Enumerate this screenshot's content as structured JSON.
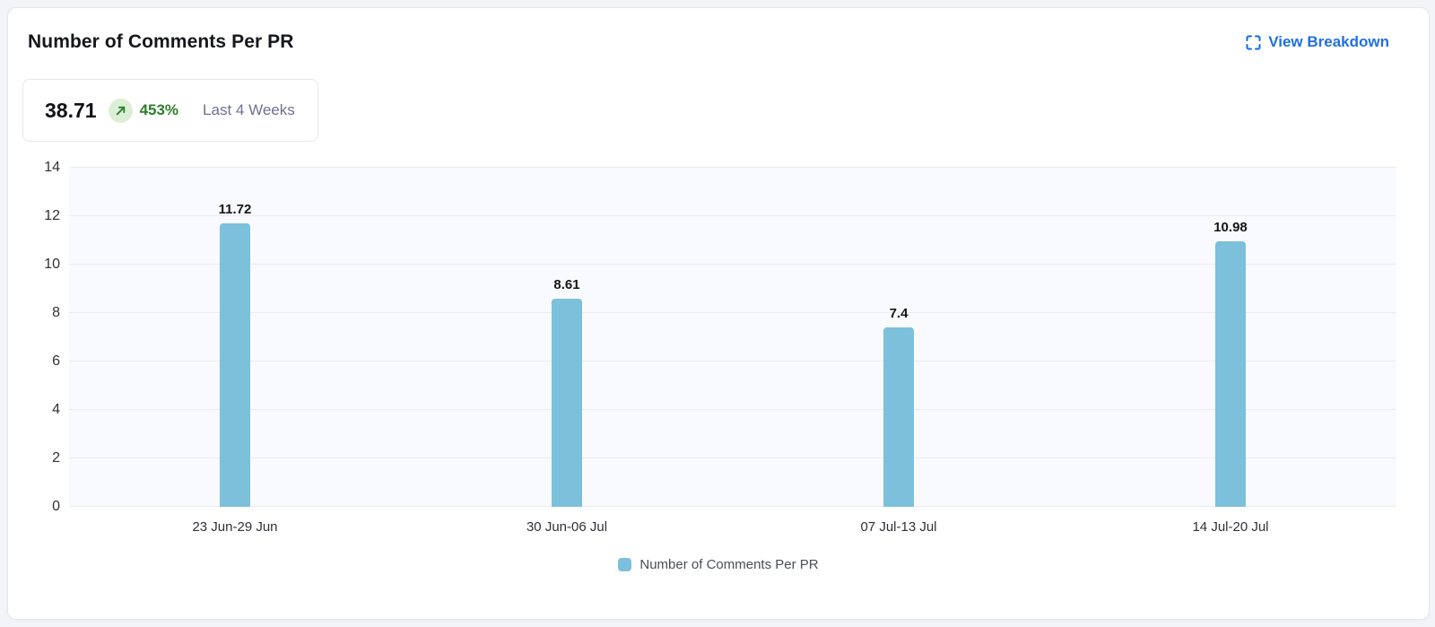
{
  "header": {
    "title": "Number of Comments Per PR",
    "view_breakdown_label": "View Breakdown"
  },
  "summary": {
    "value": "38.71",
    "change": "453%",
    "change_direction": "up",
    "period": "Last 4 Weeks"
  },
  "colors": {
    "accent_blue": "#2170e0",
    "bar_blue": "#7cc0dc",
    "positive_green": "#2e7d2b",
    "positive_green_bg": "#dcefd6",
    "plot_background": "#f8fafd",
    "gridline": "#e9ecf1"
  },
  "chart_data": {
    "type": "bar",
    "title": "Number of Comments Per PR",
    "categories": [
      "23 Jun-29 Jun",
      "30 Jun-06 Jul",
      "07 Jul-13 Jul",
      "14 Jul-20 Jul"
    ],
    "values": [
      11.72,
      8.61,
      7.4,
      10.98
    ],
    "value_labels": [
      "11.72",
      "8.61",
      "7.4",
      "10.98"
    ],
    "xlabel": "",
    "ylabel": "",
    "ylim": [
      0,
      14
    ],
    "ytick_step": 2,
    "yticks": [
      0,
      2,
      4,
      6,
      8,
      10,
      12,
      14
    ],
    "grid": true,
    "bar_color": "#7cc0dc",
    "legend": [
      {
        "label": "Number of Comments Per PR",
        "color": "#7cc0dc"
      }
    ],
    "legend_position": "bottom"
  }
}
